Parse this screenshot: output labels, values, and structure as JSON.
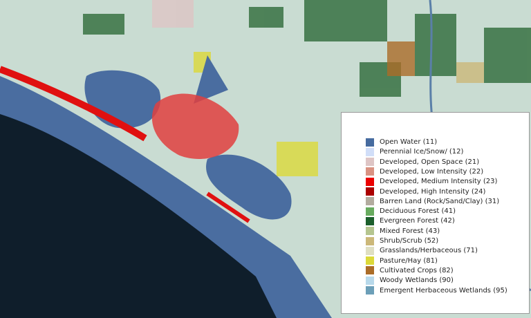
{
  "legend": {
    "items": [
      {
        "label": "Open Water (11)",
        "color": "#466b9f"
      },
      {
        "label": "Perennial Ice/Snow/ (12)",
        "color": "#d1def8"
      },
      {
        "label": "Developed, Open Space (21)",
        "color": "#dec5c5"
      },
      {
        "label": "Developed, Low Intensity (22)",
        "color": "#d99282"
      },
      {
        "label": "Developed, Medium Intensity (23)",
        "color": "#eb0000"
      },
      {
        "label": "Developed, High Intensity (24)",
        "color": "#ab0000"
      },
      {
        "label": "Barren Land (Rock/Sand/Clay) (31)",
        "color": "#b3ac9f"
      },
      {
        "label": "Deciduous Forest (41)",
        "color": "#68ab5f"
      },
      {
        "label": "Evergreen Forest (42)",
        "color": "#1c5f2c"
      },
      {
        "label": "Mixed Forest (43)",
        "color": "#b5c58f"
      },
      {
        "label": "Shrub/Scrub (52)",
        "color": "#ccb879"
      },
      {
        "label": "Grasslands/Herbaceous (71)",
        "color": "#dfdfc2"
      },
      {
        "label": "Pasture/Hay (81)",
        "color": "#dcd939"
      },
      {
        "label": "Cultivated Crops (82)",
        "color": "#ab6c28"
      },
      {
        "label": "Woody Wetlands (90)",
        "color": "#b8d9eb"
      },
      {
        "label": "Emergent Herbaceous Wetlands (95)",
        "color": "#6c9fb8"
      }
    ]
  }
}
